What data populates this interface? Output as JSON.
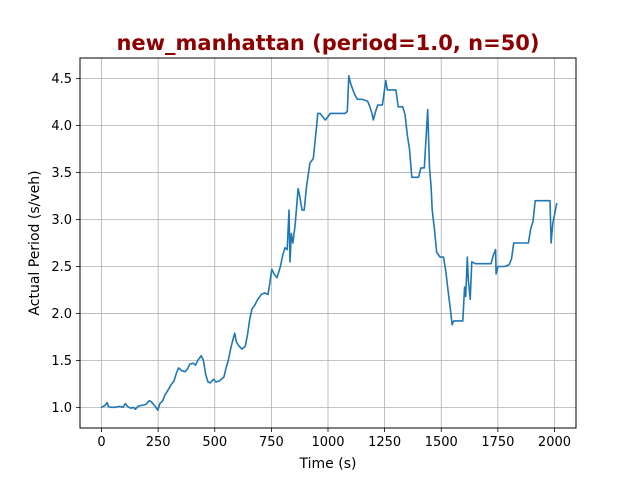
{
  "chart_data": {
    "type": "line",
    "title": "new_manhattan (period=1.0, n=50)",
    "title_color": "#8b0000",
    "xlabel": "Time (s)",
    "ylabel": "Actual Period (s/veh)",
    "xlim": [
      -95,
      2095
    ],
    "ylim": [
      0.78,
      4.72
    ],
    "xticks": [
      0,
      250,
      500,
      750,
      1000,
      1250,
      1500,
      1750,
      2000
    ],
    "yticks": [
      1.0,
      1.5,
      2.0,
      2.5,
      3.0,
      3.5,
      4.0,
      4.5
    ],
    "xtick_labels": [
      "0",
      "250",
      "500",
      "750",
      "1000",
      "1250",
      "1500",
      "1750",
      "2000"
    ],
    "ytick_labels": [
      "1.0",
      "1.5",
      "2.0",
      "2.5",
      "3.0",
      "3.5",
      "4.0",
      "4.5"
    ],
    "grid": true,
    "line_color": "#1f77b4",
    "series": [
      {
        "points": [
          [
            0,
            1.0
          ],
          [
            15,
            1.02
          ],
          [
            25,
            1.05
          ],
          [
            30,
            1.01
          ],
          [
            40,
            1.0
          ],
          [
            60,
            1.0
          ],
          [
            80,
            1.01
          ],
          [
            95,
            1.0
          ],
          [
            105,
            1.04
          ],
          [
            115,
            1.01
          ],
          [
            130,
            0.99
          ],
          [
            140,
            1.0
          ],
          [
            150,
            0.98
          ],
          [
            160,
            1.01
          ],
          [
            175,
            1.02
          ],
          [
            195,
            1.03
          ],
          [
            210,
            1.07
          ],
          [
            220,
            1.06
          ],
          [
            230,
            1.03
          ],
          [
            240,
            1.0
          ],
          [
            248,
            0.97
          ],
          [
            258,
            1.04
          ],
          [
            270,
            1.07
          ],
          [
            280,
            1.13
          ],
          [
            290,
            1.17
          ],
          [
            300,
            1.21
          ],
          [
            310,
            1.25
          ],
          [
            320,
            1.28
          ],
          [
            330,
            1.36
          ],
          [
            340,
            1.42
          ],
          [
            355,
            1.39
          ],
          [
            370,
            1.38
          ],
          [
            380,
            1.41
          ],
          [
            390,
            1.46
          ],
          [
            405,
            1.47
          ],
          [
            415,
            1.45
          ],
          [
            425,
            1.5
          ],
          [
            440,
            1.55
          ],
          [
            450,
            1.5
          ],
          [
            460,
            1.35
          ],
          [
            470,
            1.27
          ],
          [
            480,
            1.26
          ],
          [
            495,
            1.3
          ],
          [
            505,
            1.27
          ],
          [
            520,
            1.28
          ],
          [
            540,
            1.32
          ],
          [
            550,
            1.42
          ],
          [
            560,
            1.5
          ],
          [
            570,
            1.62
          ],
          [
            580,
            1.72
          ],
          [
            588,
            1.79
          ],
          [
            595,
            1.7
          ],
          [
            605,
            1.66
          ],
          [
            620,
            1.62
          ],
          [
            635,
            1.65
          ],
          [
            645,
            1.78
          ],
          [
            655,
            1.95
          ],
          [
            665,
            2.05
          ],
          [
            675,
            2.08
          ],
          [
            690,
            2.15
          ],
          [
            705,
            2.2
          ],
          [
            720,
            2.22
          ],
          [
            735,
            2.2
          ],
          [
            745,
            2.35
          ],
          [
            752,
            2.47
          ],
          [
            762,
            2.42
          ],
          [
            775,
            2.38
          ],
          [
            790,
            2.5
          ],
          [
            800,
            2.62
          ],
          [
            810,
            2.7
          ],
          [
            820,
            2.68
          ],
          [
            828,
            3.1
          ],
          [
            832,
            2.55
          ],
          [
            838,
            2.85
          ],
          [
            845,
            2.75
          ],
          [
            855,
            2.95
          ],
          [
            868,
            3.33
          ],
          [
            875,
            3.25
          ],
          [
            885,
            3.1
          ],
          [
            895,
            3.1
          ],
          [
            905,
            3.35
          ],
          [
            920,
            3.6
          ],
          [
            935,
            3.65
          ],
          [
            948,
            3.95
          ],
          [
            955,
            4.13
          ],
          [
            965,
            4.13
          ],
          [
            975,
            4.1
          ],
          [
            988,
            4.06
          ],
          [
            995,
            4.08
          ],
          [
            1010,
            4.13
          ],
          [
            1040,
            4.13
          ],
          [
            1075,
            4.13
          ],
          [
            1085,
            4.15
          ],
          [
            1092,
            4.53
          ],
          [
            1100,
            4.45
          ],
          [
            1110,
            4.38
          ],
          [
            1120,
            4.32
          ],
          [
            1130,
            4.28
          ],
          [
            1150,
            4.28
          ],
          [
            1175,
            4.26
          ],
          [
            1185,
            4.2
          ],
          [
            1195,
            4.12
          ],
          [
            1200,
            4.06
          ],
          [
            1210,
            4.15
          ],
          [
            1220,
            4.22
          ],
          [
            1240,
            4.22
          ],
          [
            1255,
            4.48
          ],
          [
            1262,
            4.38
          ],
          [
            1275,
            4.38
          ],
          [
            1300,
            4.38
          ],
          [
            1310,
            4.2
          ],
          [
            1330,
            4.2
          ],
          [
            1340,
            4.12
          ],
          [
            1350,
            3.9
          ],
          [
            1360,
            3.75
          ],
          [
            1370,
            3.45
          ],
          [
            1380,
            3.45
          ],
          [
            1400,
            3.45
          ],
          [
            1410,
            3.55
          ],
          [
            1425,
            3.55
          ],
          [
            1440,
            4.17
          ],
          [
            1448,
            3.55
          ],
          [
            1455,
            3.35
          ],
          [
            1460,
            3.1
          ],
          [
            1470,
            2.9
          ],
          [
            1480,
            2.65
          ],
          [
            1495,
            2.6
          ],
          [
            1510,
            2.6
          ],
          [
            1520,
            2.45
          ],
          [
            1530,
            2.25
          ],
          [
            1540,
            2.05
          ],
          [
            1548,
            1.88
          ],
          [
            1555,
            1.92
          ],
          [
            1570,
            1.92
          ],
          [
            1595,
            1.92
          ],
          [
            1603,
            2.28
          ],
          [
            1608,
            2.18
          ],
          [
            1615,
            2.6
          ],
          [
            1620,
            2.35
          ],
          [
            1628,
            2.15
          ],
          [
            1635,
            2.55
          ],
          [
            1650,
            2.53
          ],
          [
            1680,
            2.53
          ],
          [
            1720,
            2.53
          ],
          [
            1730,
            2.62
          ],
          [
            1740,
            2.68
          ],
          [
            1742,
            2.42
          ],
          [
            1750,
            2.5
          ],
          [
            1780,
            2.5
          ],
          [
            1800,
            2.52
          ],
          [
            1810,
            2.58
          ],
          [
            1820,
            2.75
          ],
          [
            1840,
            2.75
          ],
          [
            1870,
            2.75
          ],
          [
            1885,
            2.75
          ],
          [
            1895,
            2.9
          ],
          [
            1905,
            2.98
          ],
          [
            1915,
            3.2
          ],
          [
            1940,
            3.2
          ],
          [
            1965,
            3.2
          ],
          [
            1980,
            3.2
          ],
          [
            1985,
            2.75
          ],
          [
            1992,
            2.95
          ],
          [
            2000,
            3.05
          ],
          [
            2010,
            3.17
          ]
        ]
      }
    ]
  }
}
